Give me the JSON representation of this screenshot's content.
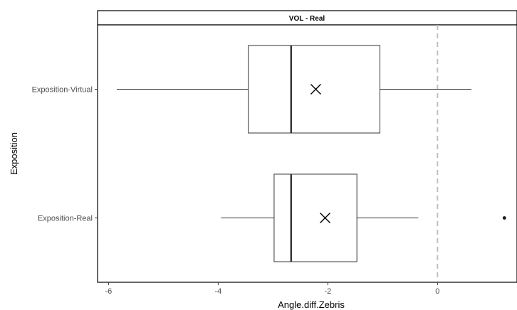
{
  "chart_data": {
    "type": "boxplot",
    "orientation": "horizontal",
    "facet_label": "VOL - Real",
    "xlabel": "Angle.diff.Zebris",
    "ylabel": "Exposition",
    "xlim": [
      -6.2,
      1.45
    ],
    "x_ticks": [
      -6,
      -4,
      -2,
      0
    ],
    "reference_line": {
      "x": 0,
      "style": "dashed",
      "color": "#bfbfbf"
    },
    "categories": [
      "Exposition-Virtual",
      "Exposition-Real"
    ],
    "boxes": [
      {
        "category": "Exposition-Virtual",
        "whisker_low": -5.85,
        "q1": -3.45,
        "median": -2.67,
        "q3": -1.05,
        "whisker_high": 0.62,
        "mean": -2.22,
        "outliers": []
      },
      {
        "category": "Exposition-Real",
        "whisker_low": -3.95,
        "q1": -2.98,
        "median": -2.67,
        "q3": -1.47,
        "whisker_high": -0.35,
        "mean": -2.05,
        "outliers": [
          1.22
        ]
      }
    ],
    "grid": false,
    "legend": "none",
    "colors": {
      "box_fill": "#ffffff",
      "line": "#333333",
      "outlier": "#1a1a1a"
    }
  }
}
